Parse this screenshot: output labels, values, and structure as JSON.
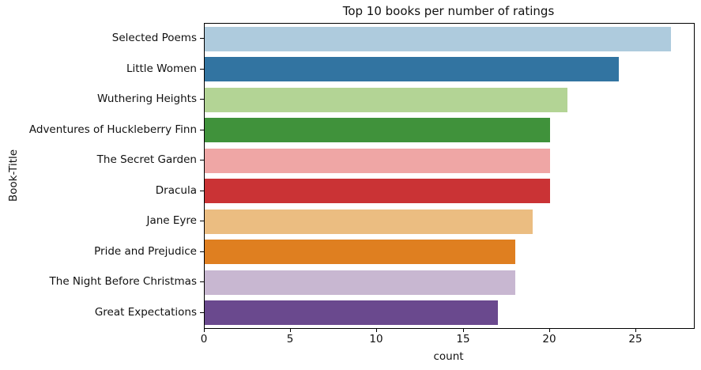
{
  "chart_data": {
    "type": "bar",
    "orientation": "horizontal",
    "title": "Top 10 books per number of ratings",
    "xlabel": "count",
    "ylabel": "Book-Title",
    "categories": [
      "Selected Poems",
      "Little Women",
      "Wuthering Heights",
      "Adventures of Huckleberry Finn",
      "The Secret Garden",
      "Dracula",
      "Jane Eyre",
      "Pride and Prejudice",
      "The Night Before Christmas",
      "Great Expectations"
    ],
    "values": [
      27,
      24,
      21,
      20,
      20,
      20,
      19,
      18,
      18,
      17
    ],
    "bar_colors": [
      "#aecbdd",
      "#3274a1",
      "#b3d495",
      "#40923b",
      "#efa6a5",
      "#ca3335",
      "#ebbd81",
      "#df7f20",
      "#c8b7d1",
      "#6a498e"
    ],
    "xlim": [
      0,
      28.35
    ],
    "xticks": [
      0,
      5,
      10,
      15,
      20,
      25
    ],
    "grid": false,
    "legend": null,
    "spine_color": "#000000",
    "background_color": "#ffffff"
  }
}
